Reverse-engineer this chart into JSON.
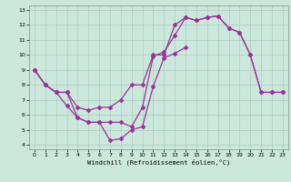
{
  "xlabel": "Windchill (Refroidissement éolien,°C)",
  "bg_color": "#cce8dd",
  "grid_color": "#aaccbb",
  "line_color": "#993399",
  "xlim": [
    -0.5,
    23.5
  ],
  "ylim": [
    3.7,
    13.3
  ],
  "xticks": [
    0,
    1,
    2,
    3,
    4,
    5,
    6,
    7,
    8,
    9,
    10,
    11,
    12,
    13,
    14,
    15,
    16,
    17,
    18,
    19,
    20,
    21,
    22,
    23
  ],
  "yticks": [
    4,
    5,
    6,
    7,
    8,
    9,
    10,
    11,
    12,
    13
  ],
  "line1_x": [
    0,
    1,
    2,
    3,
    4,
    5,
    6,
    7,
    8,
    9,
    10,
    11,
    12,
    13,
    14,
    15,
    16,
    17,
    18,
    19,
    20,
    21,
    22,
    23
  ],
  "line1_y": [
    9,
    8,
    7.5,
    7.5,
    6.5,
    6.3,
    6.5,
    6.5,
    7.0,
    8.0,
    8.0,
    10.0,
    10.0,
    12.0,
    12.5,
    12.3,
    12.5,
    12.6,
    11.8,
    11.5,
    10.0,
    7.5,
    7.5,
    7.5
  ],
  "line2_x": [
    0,
    1,
    2,
    3,
    4,
    5,
    6,
    7,
    8,
    9,
    10,
    11,
    12,
    13,
    14,
    15,
    16,
    17,
    18,
    19,
    20,
    21,
    22,
    23
  ],
  "line2_y": [
    9,
    8,
    7.5,
    7.5,
    5.8,
    5.5,
    5.5,
    5.5,
    5.5,
    5.2,
    6.5,
    9.9,
    10.2,
    11.3,
    12.5,
    12.3,
    12.5,
    12.6,
    11.8,
    11.5,
    10.0,
    7.5,
    7.5,
    7.5
  ],
  "line3_x": [
    0,
    1,
    2,
    3,
    4,
    5,
    6,
    7,
    8,
    9,
    10,
    11,
    12,
    13,
    14,
    15,
    16,
    17,
    18,
    19,
    20,
    21,
    22,
    23
  ],
  "line3_y": [
    9,
    8,
    7.5,
    6.6,
    5.8,
    5.5,
    5.5,
    4.3,
    4.4,
    5.0,
    5.2,
    7.9,
    9.8,
    10.1,
    10.5,
    null,
    null,
    null,
    null,
    null,
    null,
    null,
    null,
    null
  ]
}
